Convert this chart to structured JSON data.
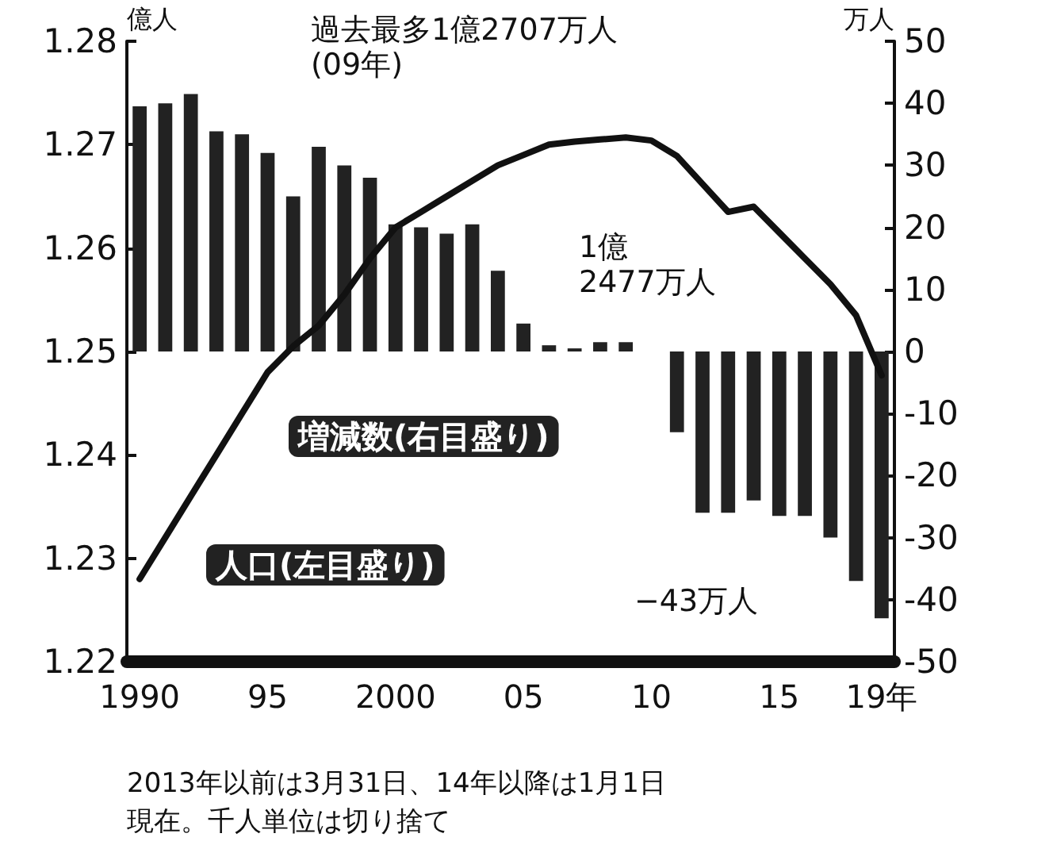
{
  "chart_data": {
    "type": "bar",
    "categories": [
      "1990",
      null,
      null,
      null,
      null,
      "95",
      null,
      null,
      null,
      null,
      "2000",
      null,
      null,
      null,
      null,
      "05",
      null,
      null,
      null,
      null,
      "10",
      null,
      null,
      null,
      null,
      "15",
      null,
      null,
      null,
      "19年"
    ],
    "series": [
      {
        "name": "増減数(右目盛り)",
        "axis": "y2",
        "color": "#222222",
        "values": [
          39.5,
          40,
          41.5,
          35.5,
          35,
          32,
          25,
          33,
          30,
          28,
          20.5,
          20,
          19,
          20.5,
          13,
          4.5,
          1,
          0.5,
          1.5,
          1.5,
          0,
          -13,
          -26,
          -26,
          -24,
          -26.5,
          -26.5,
          -30,
          -37,
          -43
        ]
      },
      {
        "name": "人口(左目盛り)",
        "type": "line",
        "color": "#111111",
        "values": [
          1.228,
          1.232,
          1.236,
          1.24,
          1.244,
          1.248,
          1.2505,
          1.2525,
          1.2555,
          1.259,
          1.262,
          1.2635,
          1.265,
          1.2665,
          1.268,
          1.269,
          1.27,
          1.2703,
          1.2705,
          1.2707,
          1.2704,
          1.2689,
          1.2662,
          1.2635,
          1.264,
          1.2615,
          1.259,
          1.2565,
          1.2535,
          1.2477
        ]
      }
    ],
    "ylabel": "億人",
    "y2label": "万人",
    "ylim": [
      1.22,
      1.28
    ],
    "yticks": [
      1.22,
      1.23,
      1.24,
      1.25,
      1.26,
      1.27,
      1.28
    ],
    "y2lim": [
      -50,
      50
    ],
    "y2ticks": [
      -50,
      -40,
      -30,
      -20,
      -10,
      0,
      10,
      20,
      30,
      40,
      50
    ],
    "grid": false,
    "legend": false,
    "marker": "none",
    "line_style": "solid",
    "annotations": [
      "過去最多1億2707万人\n(09年)",
      "1億\n2477万人",
      "−43万人",
      "2013年以前は3月31日、14年以降は1月1日現在。千人単位は切り捨て"
    ]
  }
}
